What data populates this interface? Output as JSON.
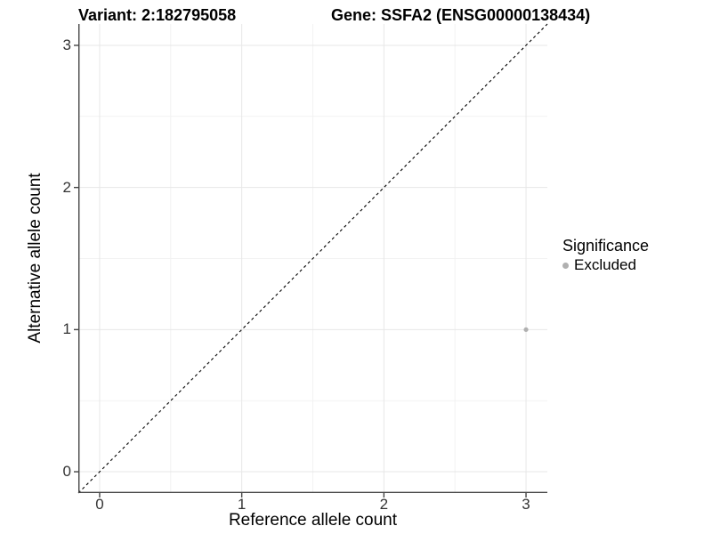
{
  "title": {
    "variant": "Variant: 2:182795058",
    "gene": "Gene: SSFA2 (ENSG00000138434)"
  },
  "chart_data": {
    "type": "scatter",
    "title_left": "Variant: 2:182795058",
    "title_right": "Gene: SSFA2 (ENSG00000138434)",
    "xlabel": "Reference allele count",
    "ylabel": "Alternative allele count",
    "xlim": [
      -0.15,
      3.15
    ],
    "ylim": [
      -0.15,
      3.15
    ],
    "x_ticks": [
      0,
      1,
      2,
      3
    ],
    "y_ticks": [
      0,
      1,
      2,
      3
    ],
    "minor_gridlines": [
      0.5,
      1.5,
      2.5
    ],
    "grid": {
      "major_color": "#e7e7e7",
      "minor_color": "#f2f2f2",
      "background": "#ffffff"
    },
    "axis_line_color": "#444444",
    "identity_line": {
      "slope": 1,
      "intercept": 0,
      "style": "dashed",
      "color": "#000000"
    },
    "series": [
      {
        "name": "Excluded",
        "color": "#b0b0b0",
        "point_radius_px": 2.6,
        "points": [
          {
            "x": 3,
            "y": 1
          }
        ]
      }
    ],
    "legend": {
      "title": "Significance",
      "position": "right"
    }
  },
  "legend": {
    "title": "Significance",
    "items": [
      {
        "label": "Excluded",
        "color": "#b0b0b0"
      }
    ]
  }
}
